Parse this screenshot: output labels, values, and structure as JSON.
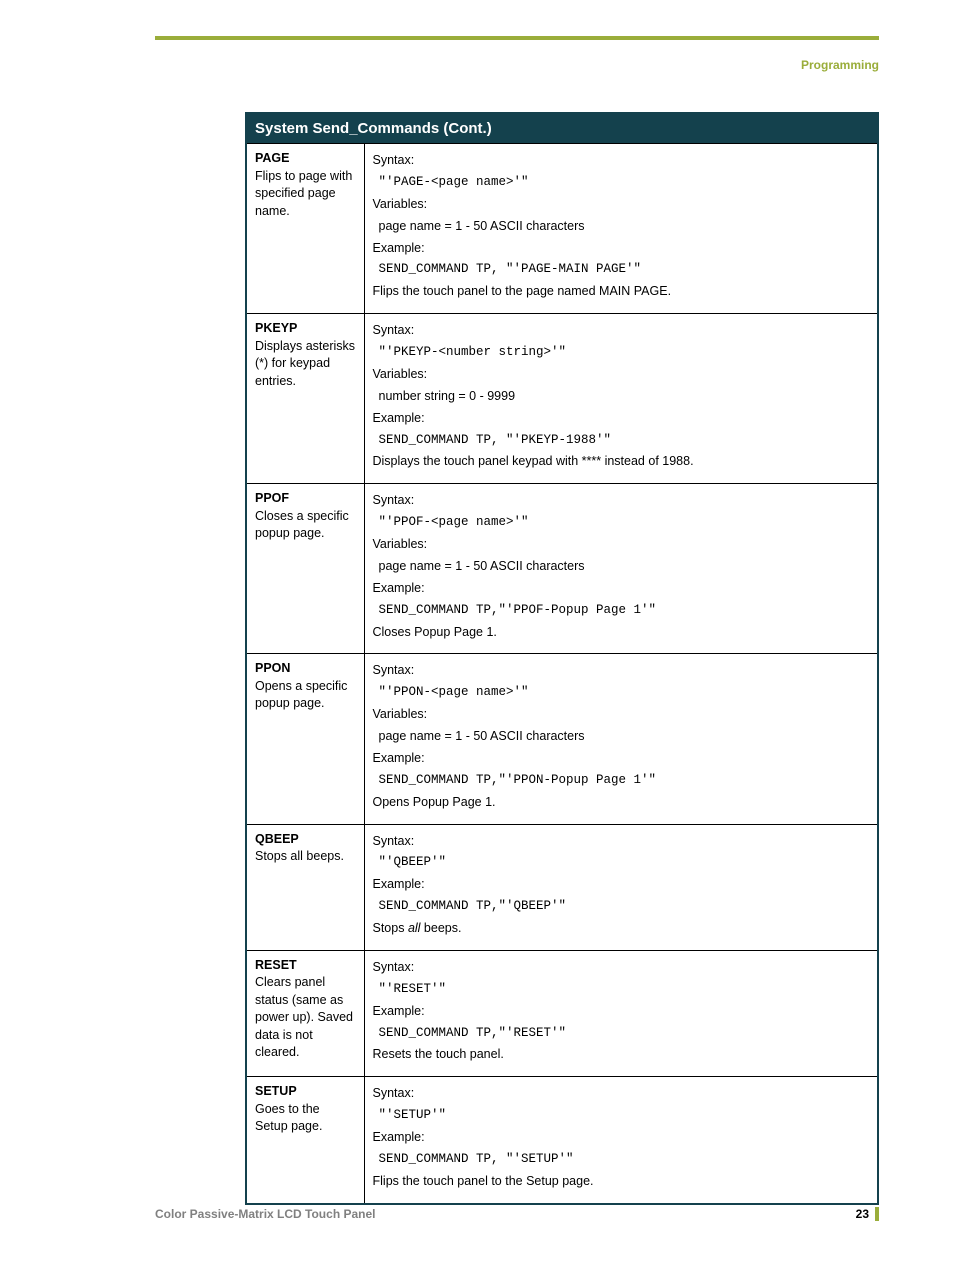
{
  "header": {
    "section_label": "Programming"
  },
  "table": {
    "title": "System Send_Commands (Cont.)",
    "header_bg": "#14414d",
    "header_fg": "#ffffff",
    "border_color": "#14414d",
    "accent_color": "#9aad3a",
    "rows": [
      {
        "name": "PAGE",
        "desc": "Flips to page with specified page name.",
        "syntax_label": "Syntax:",
        "syntax": "\"'PAGE-<page name>'\"",
        "variables_label": "Variables:",
        "variables": "page name = 1 - 50 ASCII characters",
        "example_label": "Example:",
        "example": "SEND_COMMAND TP, \"'PAGE-MAIN PAGE'\"",
        "result": "Flips the touch panel to the page named MAIN PAGE."
      },
      {
        "name": "PKEYP",
        "desc": "Displays asterisks (*) for keypad entries.",
        "syntax_label": "Syntax:",
        "syntax": "\"'PKEYP-<number string>'\"",
        "variables_label": "Variables:",
        "variables": "number string = 0 - 9999",
        "example_label": "Example:",
        "example": "SEND_COMMAND TP, \"'PKEYP-1988'\"",
        "result": "Displays the touch panel keypad with **** instead of 1988."
      },
      {
        "name": "PPOF",
        "desc": "Closes a specific popup page.",
        "syntax_label": "Syntax:",
        "syntax": "\"'PPOF-<page name>'\"",
        "variables_label": "Variables:",
        "variables": "page name = 1 - 50 ASCII characters",
        "example_label": "Example:",
        "example": "SEND_COMMAND TP,\"'PPOF-Popup Page 1'\"",
        "result": "Closes Popup Page 1."
      },
      {
        "name": "PPON",
        "desc": "Opens a specific popup page.",
        "syntax_label": "Syntax:",
        "syntax": "\"'PPON-<page name>'\"",
        "variables_label": "Variables:",
        "variables": "page name = 1 - 50 ASCII characters",
        "example_label": "Example:",
        "example": "SEND_COMMAND TP,\"'PPON-Popup Page 1'\"",
        "result": "Opens Popup Page 1."
      },
      {
        "name": "QBEEP",
        "desc": "Stops all beeps.",
        "syntax_label": "Syntax:",
        "syntax": "\"'QBEEP'\"",
        "example_label": "Example:",
        "example": "SEND_COMMAND TP,\"'QBEEP'\"",
        "result_prefix": "Stops ",
        "result_italic": "all",
        "result_suffix": " beeps."
      },
      {
        "name": "RESET",
        "desc": "Clears panel status (same as power up). Saved data is not cleared.",
        "syntax_label": "Syntax:",
        "syntax": "\"'RESET'\"",
        "example_label": "Example:",
        "example": "SEND_COMMAND TP,\"'RESET'\"",
        "result": "Resets the touch panel."
      },
      {
        "name": "SETUP",
        "desc": "Goes to the Setup page.",
        "syntax_label": "Syntax:",
        "syntax": "\"'SETUP'\"",
        "example_label": "Example:",
        "example": "SEND_COMMAND TP, \"'SETUP'\"",
        "result": "Flips the touch panel to the Setup page."
      }
    ]
  },
  "footer": {
    "title": "Color Passive-Matrix LCD Touch Panel",
    "page_number": "23"
  }
}
